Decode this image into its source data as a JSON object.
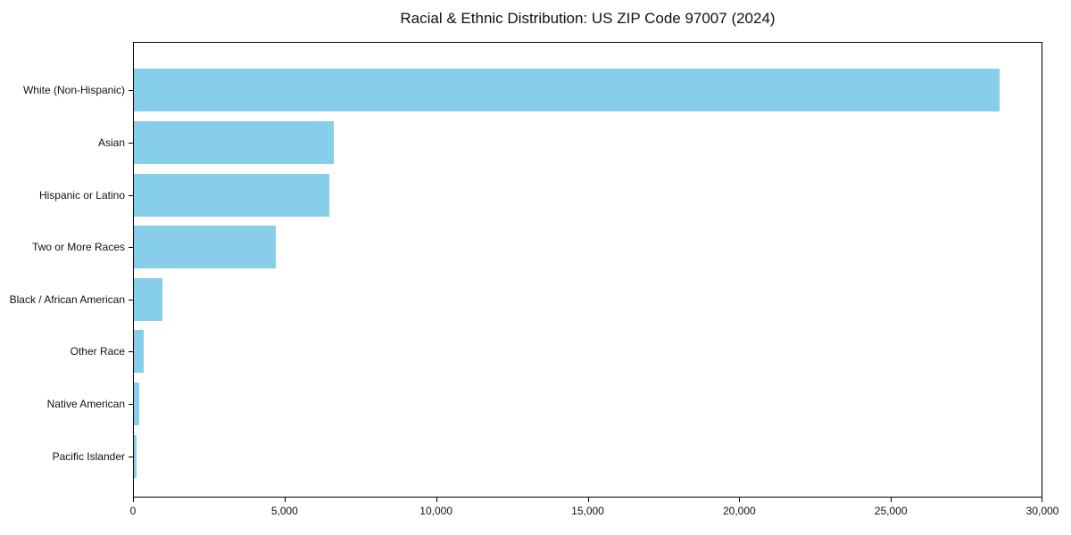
{
  "chart_data": {
    "type": "bar",
    "orientation": "horizontal",
    "title": "Racial & Ethnic Distribution: US ZIP Code 97007 (2024)",
    "categories": [
      "White (Non-Hispanic)",
      "Asian",
      "Hispanic or Latino",
      "Two or More Races",
      "Black / African American",
      "Other Race",
      "Native American",
      "Pacific Islander"
    ],
    "values": [
      28600,
      6620,
      6450,
      4680,
      930,
      330,
      180,
      100
    ],
    "xlabel": "",
    "ylabel": "",
    "xlim": [
      0,
      30000
    ],
    "x_ticks": [
      0,
      5000,
      10000,
      15000,
      20000,
      25000,
      30000
    ],
    "x_tick_labels": [
      "0",
      "5,000",
      "10,000",
      "15,000",
      "20,000",
      "25,000",
      "30,000"
    ],
    "bar_color": "#87CEEB",
    "axis_color": "#000000",
    "text_color": "#111111",
    "grid": false,
    "legend_position": "none"
  }
}
